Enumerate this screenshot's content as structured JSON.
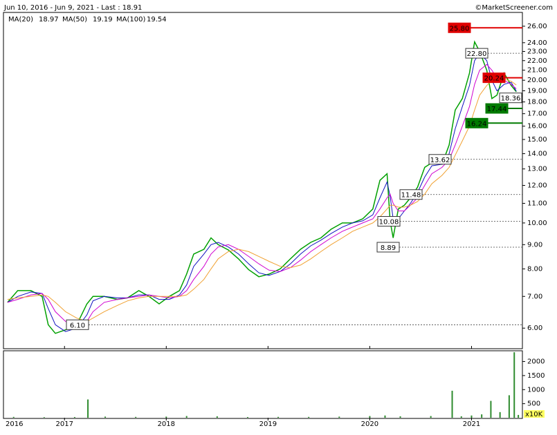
{
  "chart_data": [
    {
      "type": "line",
      "subtitle": "Jun 10, 2016 - Jun 9, 2021 - Last : 18.91",
      "credit": "©MarketScreener.com",
      "log_scale": true,
      "x": [
        2016.44,
        2016.54,
        2016.67,
        2016.78,
        2016.84,
        2016.91,
        2017.01,
        2017.12,
        2017.22,
        2017.28,
        2017.39,
        2017.52,
        2017.62,
        2017.73,
        2017.83,
        2017.93,
        2018.03,
        2018.13,
        2018.2,
        2018.27,
        2018.37,
        2018.44,
        2018.51,
        2018.61,
        2018.71,
        2018.81,
        2018.91,
        2019.01,
        2019.12,
        2019.22,
        2019.32,
        2019.42,
        2019.52,
        2019.62,
        2019.73,
        2019.83,
        2019.93,
        2020.03,
        2020.1,
        2020.17,
        2020.2,
        2020.23,
        2020.28,
        2020.34,
        2020.4,
        2020.47,
        2020.54,
        2020.61,
        2020.71,
        2020.78,
        2020.84,
        2020.91,
        2020.98,
        2021.03,
        2021.08,
        2021.15,
        2021.2,
        2021.25,
        2021.32,
        2021.39,
        2021.44
      ],
      "series": [
        {
          "color": "#00a000",
          "values": [
            6.8,
            7.2,
            7.2,
            7.0,
            6.1,
            5.85,
            5.95,
            6.1,
            6.75,
            7.0,
            7.0,
            6.9,
            6.95,
            7.2,
            7.0,
            6.75,
            7.0,
            7.2,
            7.8,
            8.6,
            8.8,
            9.3,
            9.0,
            8.77,
            8.4,
            7.97,
            7.7,
            7.8,
            8.0,
            8.4,
            8.8,
            9.1,
            9.3,
            9.7,
            10.0,
            10.0,
            10.2,
            10.7,
            12.3,
            12.7,
            10.1,
            9.3,
            10.7,
            10.9,
            11.3,
            11.9,
            13.1,
            13.4,
            13.3,
            14.6,
            17.3,
            18.3,
            20.7,
            24.1,
            23.0,
            21.0,
            18.3,
            18.6,
            20.7,
            19.5,
            18.91
          ]
        },
        {
          "name": "MA(20)",
          "color": "#1010c0",
          "values": [
            6.8,
            7.0,
            7.15,
            7.1,
            6.6,
            6.1,
            5.9,
            6.0,
            6.4,
            6.85,
            7.0,
            6.95,
            6.95,
            7.05,
            7.05,
            6.9,
            6.9,
            7.05,
            7.4,
            8.1,
            8.6,
            9.0,
            9.1,
            8.9,
            8.6,
            8.2,
            7.85,
            7.75,
            7.9,
            8.2,
            8.6,
            8.95,
            9.2,
            9.5,
            9.8,
            10.0,
            10.1,
            10.4,
            11.3,
            12.2,
            11.4,
            10.2,
            10.2,
            10.6,
            11.0,
            11.6,
            12.5,
            13.2,
            13.3,
            14.0,
            15.8,
            17.6,
            19.5,
            22.0,
            22.8,
            22.0,
            20.0,
            19.0,
            19.6,
            19.8,
            18.97
          ]
        },
        {
          "name": "MA(50)",
          "color": "#d000d0",
          "values": [
            6.8,
            6.9,
            7.05,
            7.1,
            6.9,
            6.5,
            6.2,
            6.0,
            6.2,
            6.5,
            6.8,
            6.9,
            6.95,
            7.0,
            7.05,
            7.0,
            6.95,
            7.0,
            7.2,
            7.6,
            8.1,
            8.6,
            8.9,
            9.0,
            8.8,
            8.5,
            8.2,
            7.95,
            7.9,
            8.05,
            8.35,
            8.7,
            9.0,
            9.3,
            9.6,
            9.8,
            10.0,
            10.2,
            10.7,
            11.3,
            11.5,
            11.0,
            10.6,
            10.6,
            10.9,
            11.3,
            12.0,
            12.7,
            13.1,
            13.6,
            14.6,
            16.0,
            17.6,
            19.6,
            21.0,
            21.6,
            21.0,
            20.2,
            20.0,
            19.6,
            19.19
          ]
        },
        {
          "name": "MA(100)",
          "color": "#f0a030",
          "values": [
            6.9,
            6.95,
            7.0,
            7.05,
            7.0,
            6.8,
            6.5,
            6.3,
            6.2,
            6.3,
            6.5,
            6.7,
            6.85,
            6.95,
            7.0,
            7.0,
            7.0,
            7.0,
            7.05,
            7.25,
            7.6,
            8.0,
            8.4,
            8.7,
            8.8,
            8.7,
            8.5,
            8.3,
            8.1,
            8.05,
            8.15,
            8.4,
            8.7,
            9.0,
            9.3,
            9.6,
            9.8,
            10.0,
            10.3,
            10.7,
            10.9,
            10.9,
            10.8,
            10.8,
            10.9,
            11.1,
            11.5,
            12.1,
            12.6,
            13.1,
            13.9,
            14.9,
            16.0,
            17.3,
            18.6,
            19.5,
            20.0,
            20.1,
            20.1,
            19.9,
            19.54
          ]
        }
      ],
      "xlim": [
        2016.4,
        2021.5
      ],
      "ylim": [
        5.43,
        27.8
      ],
      "yticks": [
        {
          "value": 6,
          "label": "6.00"
        },
        {
          "value": 7,
          "label": "7.00"
        },
        {
          "value": 8,
          "label": "8.00"
        },
        {
          "value": 9,
          "label": "9.00"
        },
        {
          "value": 10,
          "label": "10.00"
        },
        {
          "value": 11,
          "label": "11.00"
        },
        {
          "value": 12,
          "label": "12.00"
        },
        {
          "value": 13,
          "label": "13.00"
        },
        {
          "value": 14,
          "label": "14.00"
        },
        {
          "value": 15,
          "label": "15.00"
        },
        {
          "value": 16,
          "label": "16.00"
        },
        {
          "value": 17,
          "label": "17.00"
        },
        {
          "value": 18,
          "label": "18.00"
        },
        {
          "value": 19,
          "label": "19.00"
        },
        {
          "value": 20,
          "label": "20.00"
        },
        {
          "value": 21,
          "label": "21.00"
        },
        {
          "value": 22,
          "label": "22.00"
        },
        {
          "value": 23,
          "label": "23.00"
        },
        {
          "value": 24,
          "label": "24.00"
        },
        {
          "value": 26,
          "label": "26.00"
        }
      ],
      "levels": [
        {
          "value": 25.8,
          "label": "25.80",
          "color": "#e00000",
          "line": "solid"
        },
        {
          "value": 22.8,
          "label": "22.80",
          "color": "#ffffff",
          "line": "dashed"
        },
        {
          "value": 20.24,
          "label": "20.24",
          "color": "#e00000",
          "line": "solid"
        },
        {
          "value": 18.36,
          "label": "18.36",
          "color": "#ffffff",
          "line": "dashed"
        },
        {
          "value": 17.44,
          "label": "17.44",
          "color": "#007a00",
          "line": "solid"
        },
        {
          "value": 16.24,
          "label": "16.24",
          "color": "#007a00",
          "line": "solid"
        },
        {
          "value": 13.62,
          "label": "13.62",
          "color": "#ffffff",
          "line": "dashed"
        },
        {
          "value": 11.48,
          "label": "11.48",
          "color": "#ffffff",
          "line": "dashed"
        },
        {
          "value": 10.08,
          "label": "10.08",
          "color": "#ffffff",
          "line": "dashed"
        },
        {
          "value": 8.89,
          "label": "8.89",
          "color": "#ffffff",
          "line": "dashed"
        },
        {
          "value": 6.1,
          "label": "6.10",
          "color": "#ffffff",
          "line": "dashed"
        }
      ]
    },
    {
      "type": "bar",
      "unit_label": "x10K",
      "color": "#2e8b2e",
      "x": [
        2016.5,
        2016.8,
        2017.1,
        2017.23,
        2017.4,
        2017.7,
        2018.0,
        2018.2,
        2018.5,
        2018.8,
        2019.1,
        2019.4,
        2019.7,
        2020.0,
        2020.15,
        2020.3,
        2020.6,
        2020.81,
        2020.9,
        2021.0,
        2021.1,
        2021.19,
        2021.28,
        2021.37,
        2021.42,
        2021.46
      ],
      "values": [
        30,
        20,
        25,
        650,
        40,
        30,
        40,
        60,
        50,
        25,
        30,
        30,
        40,
        60,
        80,
        50,
        60,
        960,
        50,
        80,
        120,
        600,
        200,
        800,
        2330,
        100
      ],
      "xlim": [
        2016.4,
        2021.5
      ],
      "xticks": [
        2016,
        2017,
        2018,
        2019,
        2020,
        2021
      ],
      "ylim": [
        0,
        2333
      ],
      "yticks": [
        500,
        1000,
        1500,
        2000
      ]
    }
  ]
}
